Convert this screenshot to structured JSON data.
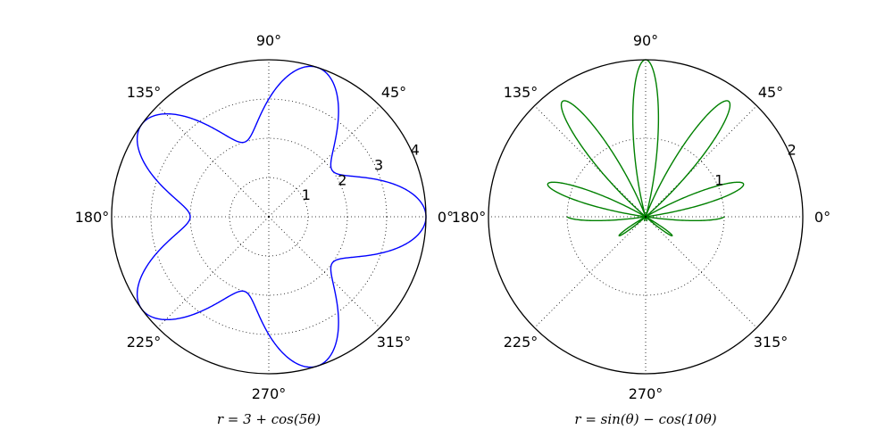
{
  "chart_data": [
    {
      "type": "line",
      "projection": "polar",
      "xlabel": "r = 3 + cos(5θ)",
      "angle_ticks": [
        "0°",
        "45°",
        "90°",
        "135°",
        "180°",
        "225°",
        "270°",
        "315°"
      ],
      "angle_tick_values_deg": [
        0,
        45,
        90,
        135,
        180,
        225,
        270,
        315
      ],
      "radial_ticks": [
        "1",
        "2",
        "3",
        "4"
      ],
      "radial_tick_values": [
        1,
        2,
        3,
        4
      ],
      "rlim": [
        0,
        4
      ],
      "grid": true,
      "series": [
        {
          "formula": "3 + cos(5*theta)",
          "color": "#0000ff",
          "theta": [
            0,
            9,
            18,
            27,
            36,
            45,
            54,
            63,
            72,
            81,
            90,
            99,
            108,
            117,
            126,
            135,
            144,
            153,
            162,
            171,
            180,
            189,
            198,
            207,
            216,
            225,
            234,
            243,
            252,
            261,
            270,
            279,
            288,
            297,
            306,
            315,
            324,
            333,
            342,
            351,
            360
          ],
          "r": [
            4.0,
            3.707,
            3.0,
            2.293,
            2.0,
            2.293,
            3.0,
            3.707,
            4.0,
            3.707,
            3.0,
            2.293,
            2.0,
            2.293,
            3.0,
            3.707,
            4.0,
            3.707,
            3.0,
            2.293,
            2.0,
            2.293,
            3.0,
            3.707,
            4.0,
            3.707,
            3.0,
            2.293,
            2.0,
            2.293,
            3.0,
            3.707,
            4.0,
            3.707,
            3.0,
            2.293,
            2.0,
            2.293,
            3.0,
            3.707,
            4.0
          ]
        }
      ]
    },
    {
      "type": "line",
      "projection": "polar",
      "xlabel": "r = sin(θ) − cos(10θ)",
      "angle_ticks": [
        "0°",
        "45°",
        "90°",
        "135°",
        "180°",
        "225°",
        "270°",
        "315°"
      ],
      "angle_tick_values_deg": [
        0,
        45,
        90,
        135,
        180,
        225,
        270,
        315
      ],
      "radial_ticks": [
        "1",
        "2"
      ],
      "radial_tick_values": [
        1,
        2
      ],
      "rlim": [
        0,
        2
      ],
      "grid": true,
      "series": [
        {
          "formula": "sin(theta) - cos(10*theta)",
          "color": "#008000",
          "theta": [
            0,
            9,
            18,
            27,
            36,
            45,
            54,
            63,
            72,
            81,
            90,
            99,
            108,
            117,
            126,
            135,
            144,
            153,
            162,
            171,
            180
          ],
          "r": [
            -1.0,
            1.156,
            -0.691,
            1.454,
            -0.412,
            1.707,
            -0.191,
            1.891,
            -0.049,
            1.988,
            0.0,
            1.988,
            -0.049,
            1.891,
            -0.191,
            1.707,
            -0.412,
            1.454,
            -0.691,
            1.156,
            -1.0
          ]
        }
      ]
    }
  ]
}
